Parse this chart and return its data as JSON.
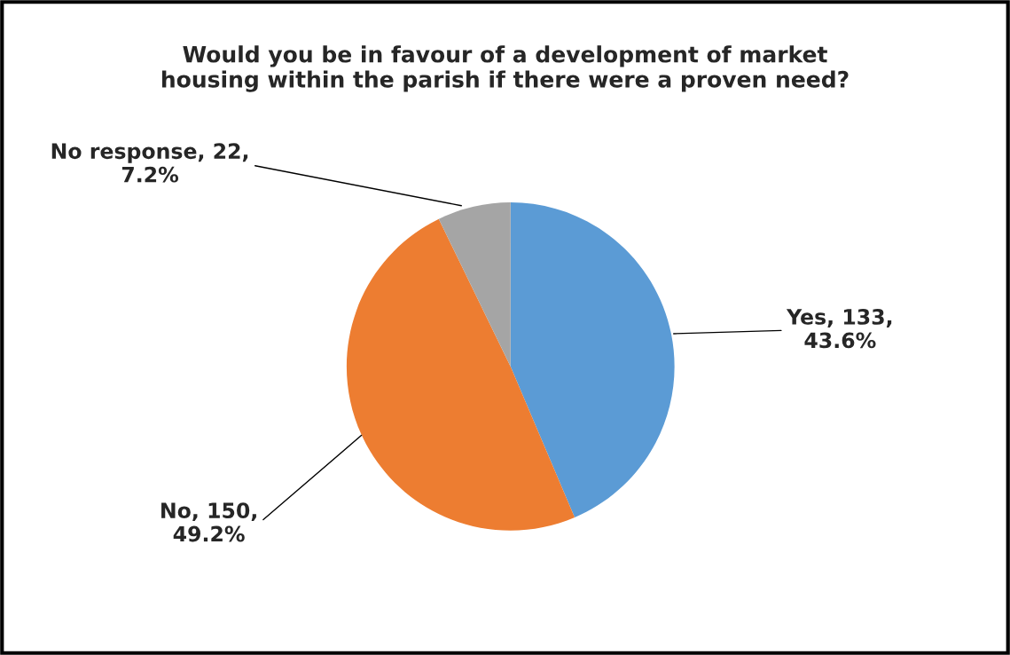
{
  "chart_data": {
    "type": "pie",
    "title": "Would you be in favour of a development of market\nhousing within the parish if there were a proven need?",
    "categories": [
      "Yes",
      "No",
      "No response"
    ],
    "values": [
      133,
      150,
      22
    ],
    "value_labels": [
      "133,\n43.6%",
      "150,\n49.2%",
      "22,\n7.2%"
    ],
    "colors": [
      "#5b9bd5",
      "#ed7d31",
      "#a5a5a5"
    ]
  }
}
